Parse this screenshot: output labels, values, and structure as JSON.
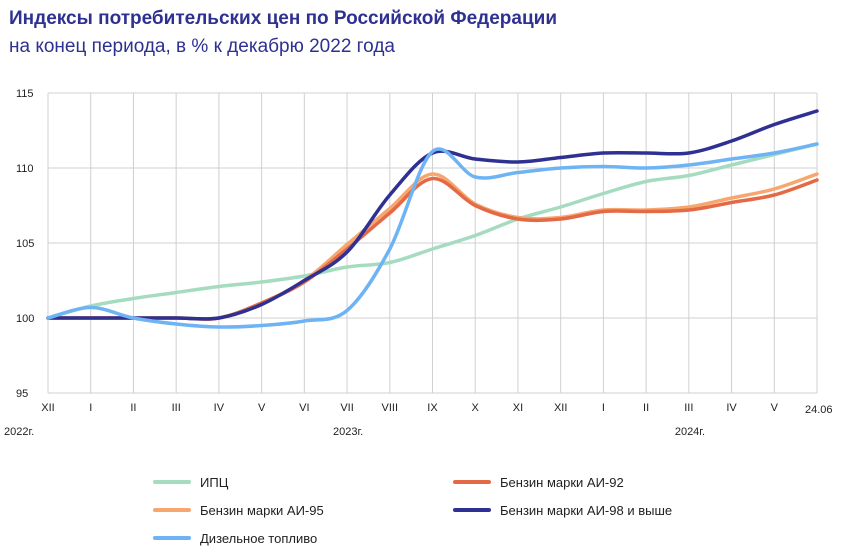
{
  "title": "Индексы потребительских цен по Российской Федерации",
  "subtitle": "на конец периода, в % к декабрю 2022 года",
  "chart_data": {
    "type": "line",
    "ylim": [
      95,
      115
    ],
    "yticks": [
      "95",
      "100",
      "105",
      "110",
      "115"
    ],
    "categories": [
      "XII",
      "I",
      "II",
      "III",
      "IV",
      "V",
      "VI",
      "VII",
      "VIII",
      "IX",
      "X",
      "XI",
      "XII",
      "I",
      "II",
      "III",
      "IV",
      "V",
      "24.06"
    ],
    "year_labels": [
      {
        "label": "2022г.",
        "pos": 0
      },
      {
        "label": "2023г.",
        "pos": 7
      },
      {
        "label": "2024г.",
        "pos": 15
      }
    ],
    "grid": true,
    "series": [
      {
        "name": "ИПЦ",
        "color": "#a5dcbf",
        "values": [
          100.0,
          100.8,
          101.3,
          101.7,
          102.1,
          102.4,
          102.8,
          103.4,
          103.7,
          104.6,
          105.5,
          106.6,
          107.4,
          108.3,
          109.1,
          109.5,
          110.2,
          110.9,
          111.6
        ]
      },
      {
        "name": "Бензин марки АИ-92",
        "color": "#e46a45",
        "values": [
          100.0,
          100.0,
          100.0,
          100.0,
          100.0,
          101.0,
          102.4,
          104.6,
          107.0,
          109.3,
          107.5,
          106.6,
          106.6,
          107.1,
          107.1,
          107.2,
          107.7,
          108.2,
          109.2
        ]
      },
      {
        "name": "Бензин марки АИ-95",
        "color": "#f6a66e",
        "values": [
          100.0,
          100.0,
          100.0,
          100.0,
          100.0,
          101.0,
          102.5,
          104.9,
          107.3,
          109.6,
          107.6,
          106.7,
          106.7,
          107.2,
          107.2,
          107.4,
          108.0,
          108.6,
          109.6
        ]
      },
      {
        "name": "Бензин марки АИ-98 и  выше",
        "color": "#2e3192",
        "values": [
          100.0,
          100.0,
          100.0,
          100.0,
          100.0,
          100.9,
          102.5,
          104.4,
          108.2,
          111.0,
          110.6,
          110.4,
          110.7,
          111.0,
          111.0,
          111.0,
          111.8,
          112.9,
          113.8
        ]
      },
      {
        "name": "Дизельное топливо",
        "color": "#6eb4f5",
        "values": [
          100.0,
          100.7,
          100.0,
          99.6,
          99.4,
          99.5,
          99.8,
          100.5,
          104.6,
          111.1,
          109.4,
          109.7,
          110.0,
          110.1,
          110.0,
          110.2,
          110.6,
          111.0,
          111.6
        ]
      }
    ]
  }
}
